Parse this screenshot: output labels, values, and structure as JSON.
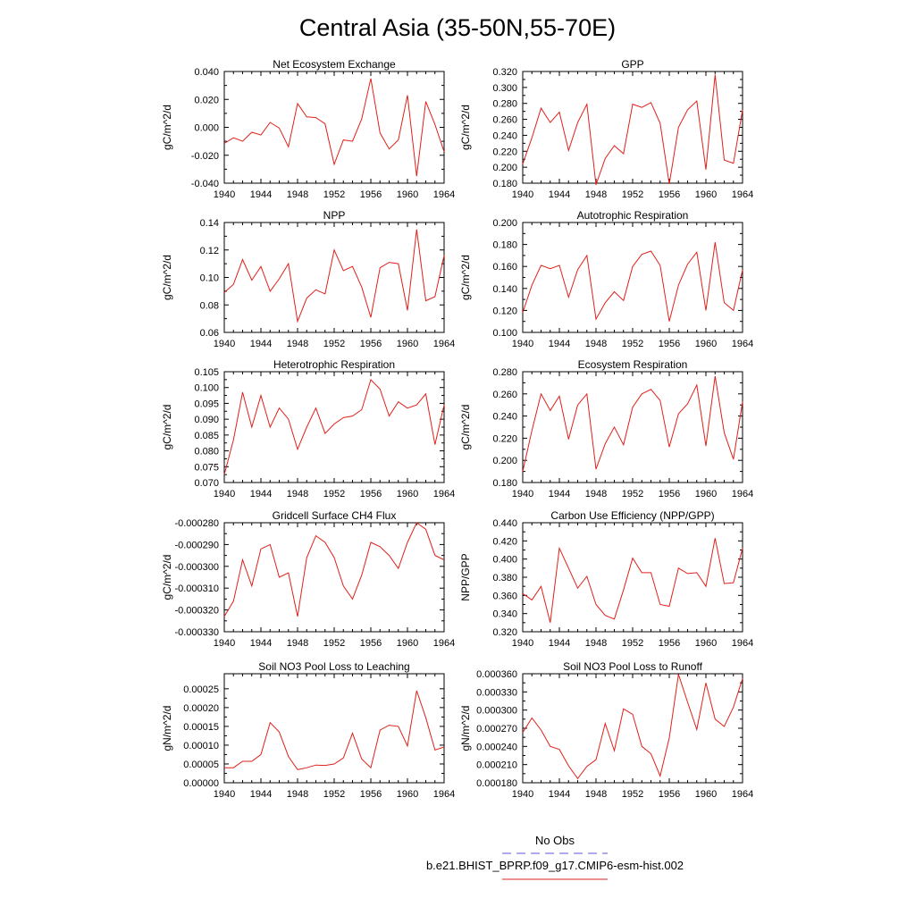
{
  "figure_title": "Central Asia (35-50N,55-70E)",
  "legend": [
    {
      "label": "No Obs",
      "color": "#5a5ad8",
      "style": "dashed"
    },
    {
      "label": "b.e21.BHIST_BPRP.f09_g17.CMIP6-esm-hist.002",
      "color": "#e0201a",
      "style": "solid"
    }
  ],
  "chart_data": [
    {
      "type": "line",
      "title": "Net Ecosystem Exchange",
      "ylabel": "gC/m^2/d",
      "xlim": [
        1940,
        1964
      ],
      "x_ticks": [
        1940,
        1944,
        1948,
        1952,
        1956,
        1960,
        1964
      ],
      "ylim": [
        -0.04,
        0.04
      ],
      "y_ticks": [
        "0.040",
        "0.020",
        "0.000",
        "-0.020",
        "-0.040"
      ],
      "y_tick_values": [
        0.04,
        0.02,
        0.0,
        -0.02,
        -0.04
      ],
      "series": [
        {
          "color": "#e0201a",
          "x": [
            1940,
            1941,
            1942,
            1943,
            1944,
            1945,
            1946,
            1947,
            1948,
            1949,
            1950,
            1951,
            1952,
            1953,
            1954,
            1955,
            1956,
            1957,
            1958,
            1959,
            1960,
            1961,
            1962,
            1963,
            1964
          ],
          "values": [
            -0.0115,
            -0.0075,
            -0.01,
            -0.0035,
            -0.0055,
            0.0035,
            -0.0005,
            -0.014,
            0.017,
            0.0075,
            0.007,
            0.0025,
            -0.0265,
            -0.009,
            -0.01,
            0.006,
            0.035,
            -0.004,
            -0.0155,
            -0.009,
            0.023,
            -0.035,
            0.0185,
            0.002,
            -0.0175
          ]
        }
      ]
    },
    {
      "type": "line",
      "title": "GPP",
      "ylabel": "gC/m^2/d",
      "xlim": [
        1940,
        1964
      ],
      "x_ticks": [
        1940,
        1944,
        1948,
        1952,
        1956,
        1960,
        1964
      ],
      "ylim": [
        0.18,
        0.32
      ],
      "y_ticks": [
        "0.320",
        "0.300",
        "0.280",
        "0.260",
        "0.240",
        "0.220",
        "0.200",
        "0.180"
      ],
      "y_tick_values": [
        0.32,
        0.3,
        0.28,
        0.26,
        0.24,
        0.22,
        0.2,
        0.18
      ],
      "series": [
        {
          "color": "#e0201a",
          "x": [
            1940,
            1941,
            1942,
            1943,
            1944,
            1945,
            1946,
            1947,
            1948,
            1949,
            1950,
            1951,
            1952,
            1953,
            1954,
            1955,
            1956,
            1957,
            1958,
            1959,
            1960,
            1961,
            1962,
            1963,
            1964
          ],
          "values": [
            0.204,
            0.237,
            0.274,
            0.256,
            0.269,
            0.221,
            0.256,
            0.279,
            0.178,
            0.211,
            0.227,
            0.217,
            0.279,
            0.275,
            0.281,
            0.255,
            0.179,
            0.25,
            0.272,
            0.283,
            0.197,
            0.316,
            0.209,
            0.205,
            0.272
          ]
        }
      ]
    },
    {
      "type": "line",
      "title": "NPP",
      "ylabel": "gC/m^2/d",
      "xlim": [
        1940,
        1964
      ],
      "x_ticks": [
        1940,
        1944,
        1948,
        1952,
        1956,
        1960,
        1964
      ],
      "ylim": [
        0.06,
        0.14
      ],
      "y_ticks": [
        "0.14",
        "0.12",
        "0.10",
        "0.08",
        "0.06"
      ],
      "y_tick_values": [
        0.14,
        0.12,
        0.1,
        0.08,
        0.06
      ],
      "series": [
        {
          "color": "#e0201a",
          "x": [
            1940,
            1941,
            1942,
            1943,
            1944,
            1945,
            1946,
            1947,
            1948,
            1949,
            1950,
            1951,
            1952,
            1953,
            1954,
            1955,
            1956,
            1957,
            1958,
            1959,
            1960,
            1961,
            1962,
            1963,
            1964
          ],
          "values": [
            0.089,
            0.095,
            0.113,
            0.098,
            0.108,
            0.09,
            0.099,
            0.11,
            0.068,
            0.085,
            0.091,
            0.088,
            0.12,
            0.105,
            0.108,
            0.093,
            0.071,
            0.107,
            0.111,
            0.11,
            0.076,
            0.135,
            0.083,
            0.086,
            0.116
          ]
        }
      ]
    },
    {
      "type": "line",
      "title": "Autotrophic Respiration",
      "ylabel": "gC/m^2/d",
      "xlim": [
        1940,
        1964
      ],
      "x_ticks": [
        1940,
        1944,
        1948,
        1952,
        1956,
        1960,
        1964
      ],
      "ylim": [
        0.1,
        0.2
      ],
      "y_ticks": [
        "0.200",
        "0.180",
        "0.160",
        "0.140",
        "0.120",
        "0.100"
      ],
      "y_tick_values": [
        0.2,
        0.18,
        0.16,
        0.14,
        0.12,
        0.1
      ],
      "series": [
        {
          "color": "#e0201a",
          "x": [
            1940,
            1941,
            1942,
            1943,
            1944,
            1945,
            1946,
            1947,
            1948,
            1949,
            1950,
            1951,
            1952,
            1953,
            1954,
            1955,
            1956,
            1957,
            1958,
            1959,
            1960,
            1961,
            1962,
            1963,
            1964
          ],
          "values": [
            0.118,
            0.143,
            0.161,
            0.158,
            0.161,
            0.132,
            0.157,
            0.17,
            0.112,
            0.127,
            0.137,
            0.129,
            0.16,
            0.171,
            0.174,
            0.161,
            0.11,
            0.143,
            0.162,
            0.173,
            0.12,
            0.182,
            0.127,
            0.12,
            0.157
          ]
        }
      ]
    },
    {
      "type": "line",
      "title": "Heterotrophic Respiration",
      "ylabel": "gC/m^2/d",
      "xlim": [
        1940,
        1964
      ],
      "x_ticks": [
        1940,
        1944,
        1948,
        1952,
        1956,
        1960,
        1964
      ],
      "ylim": [
        0.07,
        0.105
      ],
      "y_ticks": [
        "0.105",
        "0.100",
        "0.095",
        "0.090",
        "0.085",
        "0.080",
        "0.075",
        "0.070"
      ],
      "y_tick_values": [
        0.105,
        0.1,
        0.095,
        0.09,
        0.085,
        0.08,
        0.075,
        0.07
      ],
      "series": [
        {
          "color": "#e0201a",
          "x": [
            1940,
            1941,
            1942,
            1943,
            1944,
            1945,
            1946,
            1947,
            1948,
            1949,
            1950,
            1951,
            1952,
            1953,
            1954,
            1955,
            1956,
            1957,
            1958,
            1959,
            1960,
            1961,
            1962,
            1963,
            1964
          ],
          "values": [
            0.0725,
            0.0835,
            0.0985,
            0.0875,
            0.0975,
            0.0875,
            0.0935,
            0.09,
            0.0805,
            0.0875,
            0.0935,
            0.0855,
            0.0885,
            0.0905,
            0.091,
            0.093,
            0.1025,
            0.0995,
            0.091,
            0.0955,
            0.0935,
            0.0945,
            0.098,
            0.082,
            0.0945
          ]
        }
      ]
    },
    {
      "type": "line",
      "title": "Ecosystem Respiration",
      "ylabel": "gC/m^2/d",
      "xlim": [
        1940,
        1964
      ],
      "x_ticks": [
        1940,
        1944,
        1948,
        1952,
        1956,
        1960,
        1964
      ],
      "ylim": [
        0.18,
        0.28
      ],
      "y_ticks": [
        "0.280",
        "0.260",
        "0.240",
        "0.220",
        "0.200",
        "0.180"
      ],
      "y_tick_values": [
        0.28,
        0.26,
        0.24,
        0.22,
        0.2,
        0.18
      ],
      "series": [
        {
          "color": "#e0201a",
          "x": [
            1940,
            1941,
            1942,
            1943,
            1944,
            1945,
            1946,
            1947,
            1948,
            1949,
            1950,
            1951,
            1952,
            1953,
            1954,
            1955,
            1956,
            1957,
            1958,
            1959,
            1960,
            1961,
            1962,
            1963,
            1964
          ],
          "values": [
            0.19,
            0.227,
            0.26,
            0.245,
            0.258,
            0.219,
            0.25,
            0.26,
            0.192,
            0.215,
            0.23,
            0.214,
            0.248,
            0.26,
            0.264,
            0.254,
            0.212,
            0.242,
            0.251,
            0.268,
            0.213,
            0.276,
            0.225,
            0.201,
            0.253
          ]
        }
      ]
    },
    {
      "type": "line",
      "title": "Gridcell Surface CH4 Flux",
      "ylabel": "gC/m^2/d",
      "xlim": [
        1940,
        1964
      ],
      "x_ticks": [
        1940,
        1944,
        1948,
        1952,
        1956,
        1960,
        1964
      ],
      "ylim": [
        -0.00033,
        -0.00028
      ],
      "y_ticks": [
        "-0.000280",
        "-0.000290",
        "-0.000300",
        "-0.000310",
        "-0.000320",
        "-0.000330"
      ],
      "y_tick_values": [
        -0.00028,
        -0.00029,
        -0.0003,
        -0.00031,
        -0.00032,
        -0.00033
      ],
      "series": [
        {
          "color": "#e0201a",
          "x": [
            1940,
            1941,
            1942,
            1943,
            1944,
            1945,
            1946,
            1947,
            1948,
            1949,
            1950,
            1951,
            1952,
            1953,
            1954,
            1955,
            1956,
            1957,
            1958,
            1959,
            1960,
            1961,
            1962,
            1963,
            1964
          ],
          "values": [
            -0.000323,
            -0.000316,
            -0.000297,
            -0.000309,
            -0.000292,
            -0.00029,
            -0.000305,
            -0.000303,
            -0.000323,
            -0.000296,
            -0.000286,
            -0.000289,
            -0.000296,
            -0.000309,
            -0.000315,
            -0.000304,
            -0.000289,
            -0.000291,
            -0.000295,
            -0.000301,
            -0.000289,
            -0.00028,
            -0.000283,
            -0.000295,
            -0.000297
          ]
        }
      ]
    },
    {
      "type": "line",
      "title": "Carbon Use Efficiency (NPP/GPP)",
      "ylabel": "NPP/GPP",
      "xlim": [
        1940,
        1964
      ],
      "x_ticks": [
        1940,
        1944,
        1948,
        1952,
        1956,
        1960,
        1964
      ],
      "ylim": [
        0.32,
        0.44
      ],
      "y_ticks": [
        "0.440",
        "0.420",
        "0.400",
        "0.380",
        "0.360",
        "0.340",
        "0.320"
      ],
      "y_tick_values": [
        0.44,
        0.42,
        0.4,
        0.38,
        0.36,
        0.34,
        0.32
      ],
      "series": [
        {
          "color": "#e0201a",
          "x": [
            1940,
            1941,
            1942,
            1943,
            1944,
            1945,
            1946,
            1947,
            1948,
            1949,
            1950,
            1951,
            1952,
            1953,
            1954,
            1955,
            1956,
            1957,
            1958,
            1959,
            1960,
            1961,
            1962,
            1963,
            1964
          ],
          "values": [
            0.362,
            0.355,
            0.37,
            0.33,
            0.412,
            0.39,
            0.368,
            0.381,
            0.35,
            0.338,
            0.334,
            0.366,
            0.401,
            0.385,
            0.385,
            0.35,
            0.348,
            0.39,
            0.384,
            0.385,
            0.37,
            0.423,
            0.373,
            0.374,
            0.412
          ]
        }
      ]
    },
    {
      "type": "line",
      "title": "Soil NO3 Pool Loss to Leaching",
      "ylabel": "gN/m^2/d",
      "xlim": [
        1940,
        1964
      ],
      "x_ticks": [
        1940,
        1944,
        1948,
        1952,
        1956,
        1960,
        1964
      ],
      "ylim": [
        0.0,
        0.00029
      ],
      "y_ticks": [
        "0.00025",
        "0.00020",
        "0.00015",
        "0.00010",
        "0.00005",
        "0.00000"
      ],
      "y_tick_values": [
        0.00025,
        0.0002,
        0.00015,
        0.0001,
        5e-05,
        0.0
      ],
      "series": [
        {
          "color": "#e0201a",
          "x": [
            1940,
            1941,
            1942,
            1943,
            1944,
            1945,
            1946,
            1947,
            1948,
            1949,
            1950,
            1951,
            1952,
            1953,
            1954,
            1955,
            1956,
            1957,
            1958,
            1959,
            1960,
            1961,
            1962,
            1963,
            1964
          ],
          "values": [
            4e-05,
            4e-05,
            5.7e-05,
            5.7e-05,
            7.5e-05,
            0.00016,
            0.000135,
            7e-05,
            3.5e-05,
            4e-05,
            4.7e-05,
            4.6e-05,
            5e-05,
            6.6e-05,
            0.000132,
            6.3e-05,
            4e-05,
            0.00014,
            0.000153,
            0.00015,
            9.8e-05,
            0.000245,
            0.000173,
            8.7e-05,
            9.5e-05
          ]
        }
      ]
    },
    {
      "type": "line",
      "title": "Soil NO3 Pool Loss to Runoff",
      "ylabel": "gN/m^2/d",
      "xlim": [
        1940,
        1964
      ],
      "x_ticks": [
        1940,
        1944,
        1948,
        1952,
        1956,
        1960,
        1964
      ],
      "ylim": [
        0.00018,
        0.00036
      ],
      "y_ticks": [
        "0.000360",
        "0.000330",
        "0.000300",
        "0.000270",
        "0.000240",
        "0.000210",
        "0.000180"
      ],
      "y_tick_values": [
        0.00036,
        0.00033,
        0.0003,
        0.00027,
        0.00024,
        0.00021,
        0.00018
      ],
      "series": [
        {
          "color": "#e0201a",
          "x": [
            1940,
            1941,
            1942,
            1943,
            1944,
            1945,
            1946,
            1947,
            1948,
            1949,
            1950,
            1951,
            1952,
            1953,
            1954,
            1955,
            1956,
            1957,
            1958,
            1959,
            1960,
            1961,
            1962,
            1963,
            1964
          ],
          "values": [
            0.000263,
            0.000287,
            0.000267,
            0.00024,
            0.000235,
            0.000208,
            0.000187,
            0.000207,
            0.000218,
            0.000278,
            0.000233,
            0.000302,
            0.000293,
            0.00024,
            0.000228,
            0.000191,
            0.000254,
            0.000359,
            0.000313,
            0.000268,
            0.000345,
            0.000285,
            0.000273,
            0.000305,
            0.000352
          ]
        }
      ]
    }
  ]
}
